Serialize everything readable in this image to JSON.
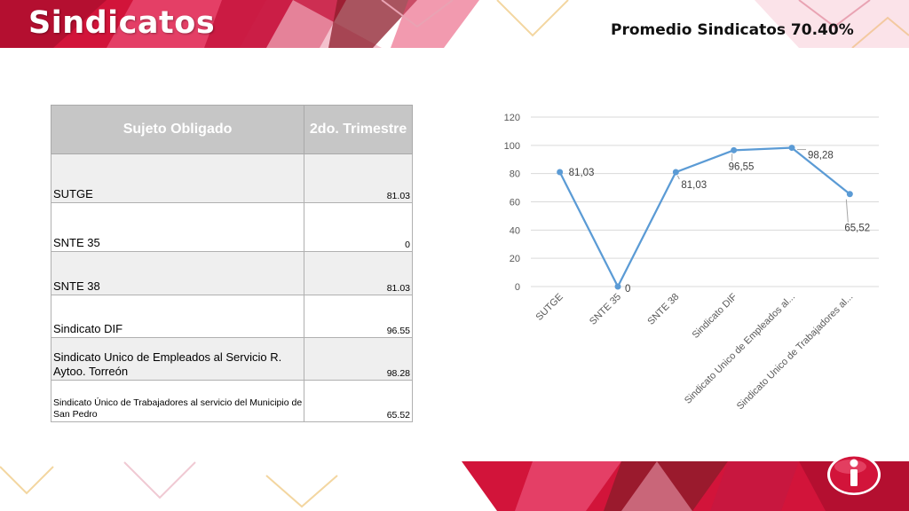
{
  "slide": {
    "title": "Sindicatos",
    "average_label": "Promedio  Sindicatos 70.40%"
  },
  "table": {
    "headers": [
      "Sujeto Obligado",
      "2do. Trimestre"
    ],
    "rows": [
      {
        "name": "SUTGE",
        "value": "81.03"
      },
      {
        "name": "SNTE 35",
        "value": "0"
      },
      {
        "name": "SNTE 38",
        "value": "81.03"
      },
      {
        "name": "Sindicato DIF",
        "value": "96.55"
      },
      {
        "name": "Sindicato Unico de Empleados al Servicio R. Aytoo. Torreón",
        "value": "98.28"
      },
      {
        "name": "Sindicato Único de Trabajadores al servicio del Municipio de San Pedro",
        "value": "65.52"
      }
    ]
  },
  "chart_data": {
    "type": "line",
    "categories": [
      "SUTGE",
      "SNTE 35",
      "SNTE 38",
      "Sindicato DIF",
      "Sindicato Unico de Empleados al...",
      "Sindicato Unico de Trabajadores al..."
    ],
    "series": [
      {
        "values": [
          81.03,
          0,
          81.03,
          96.55,
          98.28,
          65.52
        ],
        "labels": [
          "81,03",
          "0",
          "81,03",
          "96,55",
          "98,28",
          "65,52"
        ]
      }
    ],
    "ylim": [
      0,
      120
    ],
    "yticks": [
      "0",
      "20",
      "40",
      "60",
      "80",
      "100",
      "120"
    ],
    "grid": true,
    "legend": "none",
    "line_color": "#5b9bd5"
  },
  "colors": {
    "brand_red": "#d2143a",
    "brand_pink": "#e8476e",
    "brand_dark": "#8c1b2a"
  },
  "icons": {
    "logo": "info-i-icon"
  }
}
